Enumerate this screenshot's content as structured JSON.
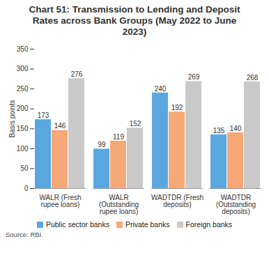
{
  "chart_data": {
    "type": "bar",
    "title": "Chart 51: Transmission to Lending and Deposit Rates across Bank Groups (May 2022 to June 2023)",
    "y_label": "Basis points",
    "categories": [
      "WALR (Fresh rupee loans)",
      "WALR (Outstanding rupee loans)",
      "WADTDR (Fresh deposits)",
      "WADTDR (Outstanding deposits)"
    ],
    "series": [
      {
        "name": "Public sector banks",
        "color": "#5aa7df",
        "values": [
          173,
          99,
          240,
          135
        ]
      },
      {
        "name": "Private banks",
        "color": "#f6a877",
        "values": [
          146,
          119,
          192,
          140
        ]
      },
      {
        "name": "Foreign banks",
        "color": "#c9c9c9",
        "values": [
          276,
          152,
          269,
          268
        ]
      }
    ],
    "ylim": [
      0,
      350
    ],
    "yticks": [
      0,
      50,
      100,
      150,
      200,
      250,
      300,
      350
    ],
    "grid": false,
    "legend": "bottom",
    "data_labels": true,
    "source": "Source: RBI."
  }
}
